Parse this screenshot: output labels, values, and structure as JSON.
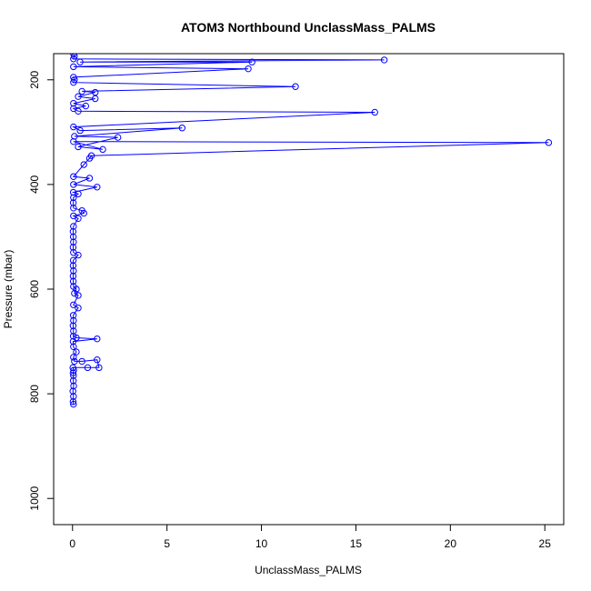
{
  "chart_data": {
    "type": "line",
    "title": "ATOM3 Northbound UnclassMass_PALMS",
    "xlabel": "UnclassMass_PALMS",
    "ylabel": "Pressure (mbar)",
    "xlim": [
      -1,
      26
    ],
    "ylim": [
      1050,
      150
    ],
    "y_reversed": true,
    "x_ticks": [
      0,
      5,
      10,
      15,
      20,
      25
    ],
    "y_ticks": [
      200,
      400,
      600,
      800,
      1000
    ],
    "grid": false,
    "legend": "none",
    "colors": {
      "series": "#0000ff",
      "axes": "#000000"
    },
    "series": [
      {
        "marker": "open-circle",
        "points": [
          [
            0.05,
            820
          ],
          [
            0.03,
            815
          ],
          [
            0.05,
            805
          ],
          [
            0.02,
            795
          ],
          [
            0.06,
            785
          ],
          [
            0.04,
            775
          ],
          [
            0.05,
            765
          ],
          [
            0.03,
            760
          ],
          [
            0.06,
            755
          ],
          [
            0.02,
            750
          ],
          [
            0.8,
            750
          ],
          [
            1.4,
            750
          ],
          [
            1.3,
            735
          ],
          [
            0.5,
            738
          ],
          [
            0.1,
            738
          ],
          [
            0.05,
            730
          ],
          [
            0.2,
            720
          ],
          [
            0.05,
            710
          ],
          [
            0.03,
            700
          ],
          [
            1.3,
            695
          ],
          [
            0.2,
            693
          ],
          [
            0.04,
            690
          ],
          [
            0.05,
            680
          ],
          [
            0.03,
            670
          ],
          [
            0.05,
            660
          ],
          [
            0.04,
            650
          ],
          [
            0.3,
            636
          ],
          [
            0.05,
            630
          ],
          [
            0.3,
            612
          ],
          [
            0.1,
            608
          ],
          [
            0.2,
            600
          ],
          [
            0.05,
            595
          ],
          [
            0.04,
            585
          ],
          [
            0.03,
            575
          ],
          [
            0.05,
            565
          ],
          [
            0.03,
            555
          ],
          [
            0.04,
            545
          ],
          [
            0.3,
            535
          ],
          [
            0.05,
            530
          ],
          [
            0.03,
            520
          ],
          [
            0.05,
            510
          ],
          [
            0.04,
            500
          ],
          [
            0.03,
            490
          ],
          [
            0.05,
            480
          ],
          [
            0.3,
            465
          ],
          [
            0.05,
            460
          ],
          [
            0.6,
            455
          ],
          [
            0.5,
            450
          ],
          [
            0.05,
            445
          ],
          [
            0.04,
            435
          ],
          [
            0.05,
            425
          ],
          [
            0.3,
            418
          ],
          [
            0.04,
            415
          ],
          [
            1.3,
            405
          ],
          [
            0.05,
            400
          ],
          [
            0.9,
            388
          ],
          [
            0.05,
            385
          ],
          [
            0.6,
            362
          ],
          [
            0.9,
            350
          ],
          [
            1.0,
            345
          ],
          [
            25.2,
            320
          ],
          [
            0.05,
            318
          ],
          [
            1.6,
            333
          ],
          [
            0.3,
            328
          ],
          [
            2.4,
            310
          ],
          [
            0.1,
            308
          ],
          [
            5.8,
            292
          ],
          [
            0.4,
            297
          ],
          [
            0.05,
            290
          ],
          [
            16.0,
            262
          ],
          [
            0.3,
            260
          ],
          [
            0.05,
            255
          ],
          [
            0.7,
            250
          ],
          [
            0.05,
            245
          ],
          [
            1.2,
            236
          ],
          [
            0.3,
            232
          ],
          [
            1.2,
            224
          ],
          [
            0.5,
            222
          ],
          [
            11.8,
            213
          ],
          [
            0.05,
            205
          ],
          [
            0.1,
            200
          ],
          [
            0.05,
            195
          ],
          [
            9.3,
            179
          ],
          [
            0.05,
            175
          ],
          [
            9.5,
            166
          ],
          [
            0.4,
            166
          ],
          [
            16.5,
            162
          ],
          [
            0.05,
            160
          ],
          [
            0.1,
            155
          ],
          [
            0.05,
            150
          ]
        ]
      }
    ]
  }
}
